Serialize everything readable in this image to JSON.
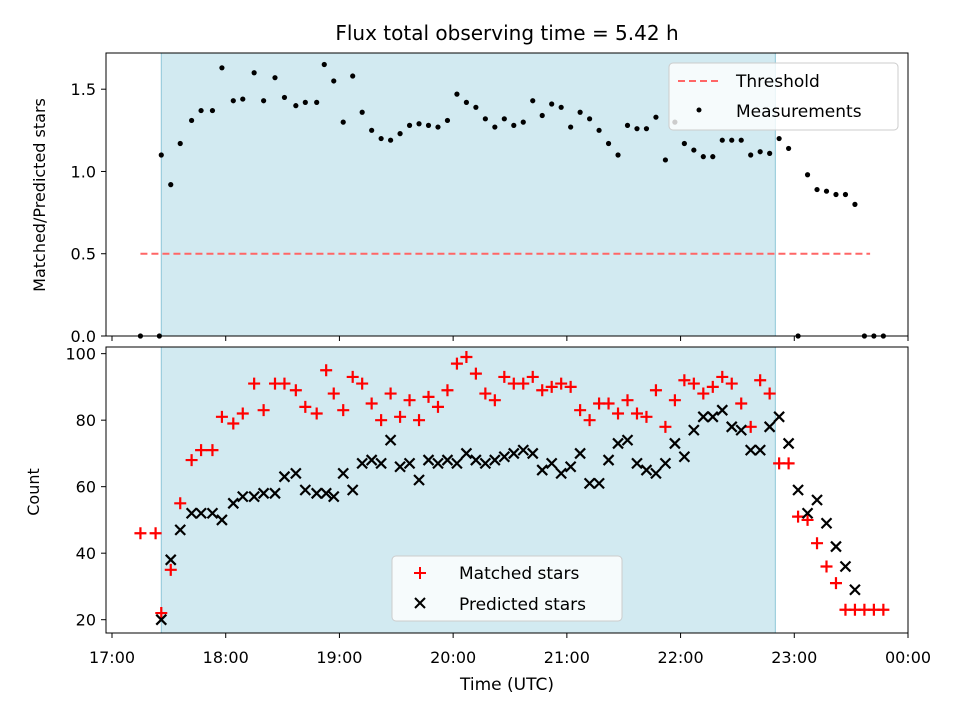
{
  "title": "Flux total observing time = 5.42 h",
  "xlabel": "Time (UTC)",
  "x_ticks": [
    "17:00",
    "18:00",
    "19:00",
    "20:00",
    "21:00",
    "22:00",
    "23:00",
    "00:00"
  ],
  "colors": {
    "shade": "#add8e6",
    "threshold": "#ff6666",
    "matched": "#ff0000",
    "predicted": "#000000",
    "measure": "#000000"
  },
  "chart_data": [
    {
      "type": "scatter",
      "ylabel": "Matched/Predicted stars",
      "ylim": [
        0,
        1.72
      ],
      "xlim": [
        "17:00",
        "24:00"
      ],
      "yticks": [
        "0.0",
        "0.5",
        "1.0",
        "1.5"
      ],
      "shaded_span": [
        "17:26",
        "22:50"
      ],
      "threshold": {
        "name": "Threshold",
        "y": 0.5,
        "x": [
          "17:15",
          "23:40"
        ]
      },
      "legend": [
        "Threshold",
        "Measurements"
      ],
      "legend_position": "top-right",
      "series": [
        {
          "name": "Measurements",
          "x": [
            "17:15",
            "17:25",
            "17:26",
            "17:31",
            "17:36",
            "17:42",
            "17:47",
            "17:53",
            "17:58",
            "18:04",
            "18:09",
            "18:15",
            "18:20",
            "18:26",
            "18:31",
            "18:37",
            "18:42",
            "18:48",
            "18:52",
            "18:57",
            "19:02",
            "19:07",
            "19:12",
            "19:17",
            "19:22",
            "19:27",
            "19:32",
            "19:37",
            "19:42",
            "19:47",
            "19:52",
            "19:57",
            "20:02",
            "20:07",
            "20:12",
            "20:17",
            "20:22",
            "20:27",
            "20:32",
            "20:37",
            "20:42",
            "20:47",
            "20:52",
            "20:57",
            "21:02",
            "21:07",
            "21:12",
            "21:17",
            "21:22",
            "21:27",
            "21:32",
            "21:37",
            "21:42",
            "21:47",
            "21:52",
            "21:57",
            "22:02",
            "22:07",
            "22:12",
            "22:17",
            "22:22",
            "22:27",
            "22:32",
            "22:37",
            "22:42",
            "22:47",
            "22:52",
            "22:57",
            "23:02",
            "23:07",
            "23:12",
            "23:17",
            "23:22",
            "23:27",
            "23:32",
            "23:37",
            "23:42",
            "23:47"
          ],
          "y": [
            0.0,
            0.0,
            1.1,
            0.92,
            1.17,
            1.31,
            1.37,
            1.37,
            1.63,
            1.43,
            1.44,
            1.6,
            1.43,
            1.57,
            1.45,
            1.4,
            1.42,
            1.42,
            1.65,
            1.55,
            1.3,
            1.58,
            1.36,
            1.25,
            1.2,
            1.19,
            1.23,
            1.28,
            1.29,
            1.28,
            1.27,
            1.31,
            1.47,
            1.42,
            1.39,
            1.32,
            1.27,
            1.32,
            1.28,
            1.3,
            1.43,
            1.34,
            1.41,
            1.39,
            1.27,
            1.36,
            1.32,
            1.25,
            1.17,
            1.1,
            1.28,
            1.26,
            1.26,
            1.33,
            1.07,
            1.3,
            1.17,
            1.13,
            1.09,
            1.09,
            1.19,
            1.19,
            1.19,
            1.1,
            1.12,
            1.11,
            1.2,
            1.14,
            0.0,
            0.98,
            0.89,
            0.88,
            0.86,
            0.86,
            0.8,
            0.0,
            0.0,
            0.0
          ]
        }
      ]
    },
    {
      "type": "scatter",
      "ylabel": "Count",
      "ylim": [
        16,
        102
      ],
      "xlim": [
        "17:00",
        "24:00"
      ],
      "yticks": [
        "20",
        "40",
        "60",
        "80",
        "100"
      ],
      "shaded_span": [
        "17:26",
        "22:50"
      ],
      "legend": [
        "Matched stars",
        "Predicted stars"
      ],
      "legend_position": "lower-center",
      "series": [
        {
          "name": "Matched stars",
          "x": [
            "17:15",
            "17:23",
            "17:26",
            "17:31",
            "17:36",
            "17:42",
            "17:47",
            "17:53",
            "17:58",
            "18:04",
            "18:09",
            "18:15",
            "18:20",
            "18:26",
            "18:31",
            "18:37",
            "18:42",
            "18:48",
            "18:53",
            "18:57",
            "19:02",
            "19:07",
            "19:12",
            "19:17",
            "19:22",
            "19:27",
            "19:32",
            "19:37",
            "19:42",
            "19:47",
            "19:52",
            "19:57",
            "20:02",
            "20:07",
            "20:12",
            "20:17",
            "20:22",
            "20:27",
            "20:32",
            "20:37",
            "20:42",
            "20:47",
            "20:52",
            "20:57",
            "21:02",
            "21:07",
            "21:12",
            "21:17",
            "21:22",
            "21:27",
            "21:32",
            "21:37",
            "21:42",
            "21:47",
            "21:52",
            "21:57",
            "22:02",
            "22:07",
            "22:12",
            "22:17",
            "22:22",
            "22:27",
            "22:32",
            "22:37",
            "22:42",
            "22:47",
            "22:52",
            "22:57",
            "23:02",
            "23:07",
            "23:12",
            "23:17",
            "23:22",
            "23:27",
            "23:32",
            "23:37",
            "23:42",
            "23:47"
          ],
          "y": [
            46,
            46,
            22,
            35,
            55,
            68,
            71,
            71,
            81,
            79,
            82,
            91,
            83,
            91,
            91,
            89,
            84,
            82,
            95,
            88,
            83,
            93,
            91,
            85,
            80,
            88,
            81,
            86,
            80,
            87,
            84,
            89,
            97,
            99,
            94,
            88,
            86,
            93,
            91,
            91,
            93,
            89,
            90,
            91,
            90,
            83,
            80,
            85,
            85,
            82,
            86,
            82,
            81,
            89,
            78,
            86,
            92,
            91,
            88,
            90,
            93,
            91,
            85,
            78,
            92,
            88,
            67,
            67,
            51,
            50,
            43,
            36,
            31,
            23,
            23,
            23,
            23,
            23
          ]
        },
        {
          "name": "Predicted stars",
          "x": [
            "17:26",
            "17:31",
            "17:36",
            "17:42",
            "17:47",
            "17:53",
            "17:58",
            "18:04",
            "18:09",
            "18:15",
            "18:20",
            "18:26",
            "18:31",
            "18:37",
            "18:42",
            "18:48",
            "18:53",
            "18:57",
            "19:02",
            "19:07",
            "19:12",
            "19:17",
            "19:22",
            "19:27",
            "19:32",
            "19:37",
            "19:42",
            "19:47",
            "19:52",
            "19:57",
            "20:02",
            "20:07",
            "20:12",
            "20:17",
            "20:22",
            "20:27",
            "20:32",
            "20:37",
            "20:42",
            "20:47",
            "20:52",
            "20:57",
            "21:02",
            "21:07",
            "21:12",
            "21:17",
            "21:22",
            "21:27",
            "21:32",
            "21:37",
            "21:42",
            "21:47",
            "21:52",
            "21:57",
            "22:02",
            "22:07",
            "22:12",
            "22:17",
            "22:22",
            "22:27",
            "22:32",
            "22:37",
            "22:42",
            "22:47",
            "22:52",
            "22:57",
            "23:02",
            "23:07",
            "23:12",
            "23:17",
            "23:22",
            "23:27",
            "23:32"
          ],
          "y": [
            20,
            38,
            47,
            52,
            52,
            52,
            50,
            55,
            57,
            57,
            58,
            58,
            63,
            64,
            59,
            58,
            58,
            57,
            64,
            59,
            67,
            68,
            67,
            74,
            66,
            67,
            62,
            68,
            67,
            68,
            67,
            70,
            68,
            67,
            68,
            69,
            70,
            71,
            70,
            65,
            67,
            64,
            66,
            70,
            61,
            61,
            68,
            73,
            74,
            67,
            65,
            64,
            67,
            73,
            69,
            77,
            81,
            81,
            83,
            78,
            77,
            71,
            71,
            78,
            81,
            73,
            59,
            52,
            56,
            49,
            42,
            36,
            29
          ]
        }
      ]
    }
  ]
}
